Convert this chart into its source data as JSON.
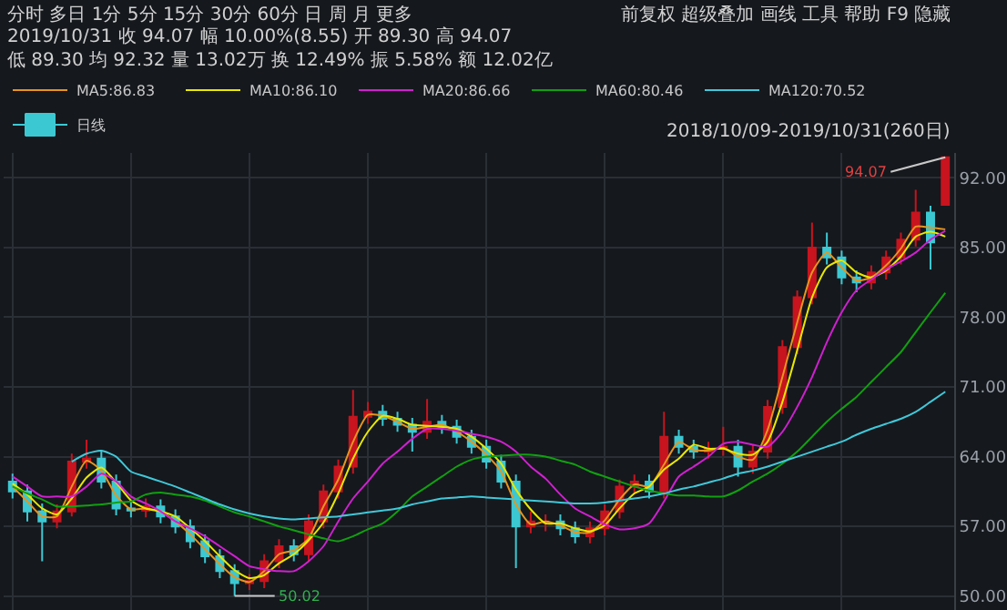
{
  "chart_data": {
    "type": "candlestick",
    "categories": [
      null,
      null,
      null,
      null,
      null,
      null,
      null,
      null,
      null,
      null,
      null,
      null,
      null,
      null,
      null,
      null,
      null,
      null,
      null,
      null,
      null,
      null,
      null,
      null,
      null,
      null,
      null,
      null,
      null,
      null,
      null,
      null,
      null,
      null,
      null,
      null,
      null,
      null,
      null,
      null,
      null,
      null,
      null,
      null,
      null,
      null,
      null,
      null,
      null,
      null,
      null,
      null,
      null,
      null,
      null,
      null,
      null,
      null,
      null,
      null,
      null,
      null,
      null,
      null
    ],
    "series": [
      {
        "name": "日线",
        "colors": [
          "#3cc8d2",
          "#3cc8d2",
          "#3cc8d2",
          "#c8141e",
          "#c8141e",
          "#c8141e",
          "#3cc8d2",
          "#3cc8d2",
          "#3cc8d2",
          "#c8141e",
          "#3cc8d2",
          "#3cc8d2",
          "#3cc8d2",
          "#3cc8d2",
          "#3cc8d2",
          "#3cc8d2",
          "#c8141e",
          "#c8141e",
          "#c8141e",
          "#3cc8d2",
          "#c8141e",
          "#c8141e",
          "#c8141e",
          "#c8141e",
          "#c8141e",
          "#3cc8d2",
          "#3cc8d2",
          "#3cc8d2",
          "#c8141e",
          "#3cc8d2",
          "#3cc8d2",
          "#3cc8d2",
          "#3cc8d2",
          "#3cc8d2",
          "#3cc8d2",
          "#c8141e",
          "#c8141e",
          "#3cc8d2",
          "#3cc8d2",
          "#c8141e",
          "#c8141e",
          "#c8141e",
          "#c8141e",
          "#3cc8d2",
          "#c8141e",
          "#3cc8d2",
          "#3cc8d2",
          "#c8141e",
          "#c8141e",
          "#3cc8d2",
          "#c8141e",
          "#c8141e",
          "#c8141e",
          "#c8141e",
          "#c8141e",
          "#3cc8d2",
          "#3cc8d2",
          "#3cc8d2",
          "#c8141e",
          "#c8141e",
          "#c8141e",
          "#c8141e",
          "#3cc8d2",
          "#c8141e"
        ],
        "ohlc": [
          [
            61.5,
            62.3,
            59.8,
            60.5
          ],
          [
            60.5,
            61.2,
            57.5,
            58.5
          ],
          [
            58.5,
            59.3,
            53.5,
            57.5
          ],
          [
            57.5,
            59.2,
            56.8,
            58.5
          ],
          [
            58.5,
            64.3,
            58.0,
            63.5
          ],
          [
            63.5,
            65.7,
            62.8,
            63.8
          ],
          [
            63.8,
            64.5,
            60.8,
            61.5
          ],
          [
            61.5,
            62.2,
            58.1,
            58.8
          ],
          [
            58.8,
            59.5,
            57.9,
            58.6
          ],
          [
            58.6,
            59.8,
            57.9,
            59.0
          ],
          [
            59.0,
            59.7,
            57.3,
            58.0
          ],
          [
            58.0,
            58.7,
            56.3,
            57.0
          ],
          [
            57.0,
            57.7,
            54.8,
            55.5
          ],
          [
            55.5,
            56.2,
            53.3,
            54.0
          ],
          [
            54.0,
            54.7,
            51.8,
            52.5
          ],
          [
            52.5,
            53.2,
            50.02,
            51.3
          ],
          [
            51.3,
            52.2,
            50.6,
            51.5
          ],
          [
            51.5,
            54.2,
            50.8,
            53.5
          ],
          [
            53.5,
            55.7,
            52.8,
            55.0
          ],
          [
            55.0,
            55.7,
            53.5,
            54.2
          ],
          [
            54.2,
            58.2,
            53.5,
            57.5
          ],
          [
            57.5,
            61.2,
            56.8,
            60.5
          ],
          [
            60.5,
            63.7,
            59.8,
            63.0
          ],
          [
            63.0,
            70.7,
            62.3,
            68.0
          ],
          [
            68.0,
            69.5,
            67.3,
            68.5
          ],
          [
            68.5,
            69.2,
            67.1,
            67.8
          ],
          [
            67.8,
            68.5,
            66.5,
            67.2
          ],
          [
            67.2,
            67.9,
            64.5,
            66.5
          ],
          [
            66.5,
            69.8,
            65.8,
            67.5
          ],
          [
            67.5,
            68.2,
            66.3,
            67.0
          ],
          [
            67.0,
            67.7,
            65.3,
            66.0
          ],
          [
            66.0,
            66.7,
            64.3,
            65.0
          ],
          [
            65.0,
            65.7,
            62.8,
            63.5
          ],
          [
            63.5,
            64.2,
            60.8,
            61.5
          ],
          [
            61.5,
            62.2,
            52.8,
            57.0
          ],
          [
            57.0,
            58.5,
            56.3,
            57.5
          ],
          [
            57.5,
            58.2,
            56.5,
            57.5
          ],
          [
            57.5,
            58.2,
            56.1,
            56.8
          ],
          [
            56.8,
            57.5,
            55.3,
            56.0
          ],
          [
            56.0,
            57.5,
            55.3,
            56.8
          ],
          [
            56.8,
            59.2,
            56.1,
            58.5
          ],
          [
            58.5,
            61.7,
            57.8,
            61.0
          ],
          [
            61.0,
            62.2,
            60.3,
            61.5
          ],
          [
            61.5,
            62.2,
            59.8,
            60.5
          ],
          [
            60.5,
            68.5,
            59.8,
            66.0
          ],
          [
            66.0,
            66.7,
            64.3,
            65.0
          ],
          [
            65.0,
            65.7,
            63.8,
            64.5
          ],
          [
            64.5,
            65.5,
            63.8,
            64.8
          ],
          [
            64.8,
            67.0,
            64.1,
            65.0
          ],
          [
            65.0,
            65.7,
            62.0,
            63.0
          ],
          [
            63.0,
            65.2,
            62.3,
            64.5
          ],
          [
            64.5,
            69.7,
            63.8,
            69.0
          ],
          [
            69.0,
            75.7,
            68.3,
            75.0
          ],
          [
            75.0,
            80.7,
            74.3,
            80.0
          ],
          [
            80.0,
            87.5,
            79.3,
            85.0
          ],
          [
            85.0,
            86.5,
            83.3,
            84.0
          ],
          [
            84.0,
            84.7,
            81.3,
            82.0
          ],
          [
            82.0,
            82.7,
            80.5,
            81.5
          ],
          [
            81.5,
            83.2,
            80.8,
            82.5
          ],
          [
            82.5,
            84.7,
            81.8,
            84.0
          ],
          [
            84.0,
            86.5,
            83.3,
            85.8
          ],
          [
            85.8,
            90.8,
            85.1,
            88.5
          ],
          [
            88.5,
            89.2,
            82.8,
            85.52
          ],
          [
            89.3,
            94.07,
            89.3,
            94.07
          ]
        ]
      },
      {
        "type": "line",
        "name": "MA5:86.83",
        "color": "#e6951f",
        "values": [
          61.0,
          59.5,
          58.0,
          58.0,
          61.0,
          63.6,
          62.6,
          60.1,
          58.7,
          58.8,
          58.5,
          57.5,
          56.2,
          54.7,
          53.2,
          51.9,
          51.4,
          52.5,
          54.2,
          54.6,
          55.8,
          59.0,
          61.7,
          65.5,
          68.2,
          68.1,
          67.5,
          66.8,
          67.0,
          67.2,
          66.5,
          65.5,
          64.2,
          62.5,
          59.2,
          57.2,
          57.5,
          57.1,
          56.4,
          56.4,
          57.6,
          59.7,
          61.2,
          61.0,
          63.2,
          65.5,
          64.7,
          64.6,
          64.9,
          64.0,
          63.7,
          66.7,
          72.0,
          77.5,
          82.5,
          84.5,
          83.0,
          81.7,
          82.0,
          83.2,
          84.9,
          87.1,
          87.0,
          86.83
        ]
      },
      {
        "type": "line",
        "name": "MA10:86.10",
        "color": "#e8e800",
        "values": [
          61.3,
          60.2,
          58.8,
          58.2,
          59.8,
          61.9,
          62.9,
          61.4,
          59.6,
          58.8,
          58.5,
          58.0,
          56.8,
          55.5,
          54.0,
          52.6,
          51.8,
          52.1,
          53.3,
          54.2,
          55.6,
          57.4,
          60.3,
          63.8,
          66.5,
          68.1,
          67.8,
          67.2,
          67.1,
          67.0,
          66.8,
          66.0,
          64.8,
          63.3,
          60.7,
          58.7,
          57.3,
          57.3,
          56.8,
          56.5,
          57.1,
          58.8,
          60.3,
          61.0,
          62.7,
          63.8,
          65.2,
          64.8,
          64.8,
          64.3,
          64.2,
          65.5,
          69.5,
          74.7,
          80.0,
          83.0,
          83.7,
          82.5,
          82.0,
          82.7,
          84.1,
          86.1,
          86.6,
          86.1
        ]
      },
      {
        "type": "line",
        "name": "MA20:86.66",
        "color": "#d020d0",
        "values": [
          62.0,
          61.0,
          60.0,
          60.0,
          60.0,
          61.0,
          62.3,
          61.5,
          60.0,
          59.3,
          58.5,
          57.5,
          56.8,
          56.0,
          55.0,
          54.0,
          53.0,
          52.7,
          52.5,
          52.5,
          53.5,
          55.0,
          57.5,
          59.8,
          61.5,
          63.3,
          64.5,
          65.8,
          66.8,
          66.8,
          66.6,
          66.3,
          66.0,
          65.5,
          64.5,
          63.0,
          61.8,
          60.2,
          58.8,
          58.0,
          57.2,
          56.7,
          56.8,
          57.3,
          59.5,
          62.0,
          63.0,
          64.0,
          65.3,
          65.5,
          65.2,
          65.0,
          66.5,
          69.0,
          72.0,
          75.5,
          78.5,
          80.7,
          81.8,
          82.8,
          83.6,
          84.5,
          85.8,
          86.66
        ]
      },
      {
        "type": "line",
        "name": "MA60:80.46",
        "color": "#10a010",
        "values": [
          61.0,
          60.3,
          59.7,
          59.0,
          59.0,
          59.1,
          59.2,
          59.4,
          59.5,
          60.2,
          60.4,
          60.2,
          60.0,
          59.6,
          59.0,
          58.4,
          58.0,
          57.5,
          57.0,
          56.6,
          56.2,
          55.8,
          55.5,
          56.0,
          56.7,
          57.3,
          58.5,
          60.0,
          61.0,
          62.0,
          63.0,
          63.7,
          64.0,
          64.1,
          64.2,
          64.2,
          64.0,
          63.6,
          63.2,
          62.5,
          62.0,
          61.5,
          61.0,
          60.6,
          60.3,
          60.1,
          60.1,
          60.0,
          60.0,
          60.6,
          61.5,
          62.3,
          63.3,
          64.5,
          66.0,
          67.5,
          68.8,
          70.0,
          71.5,
          73.0,
          74.5,
          76.5,
          78.5,
          80.46
        ]
      },
      {
        "type": "line",
        "name": "MA120:70.52",
        "color": "#40c8d8",
        "values": [
          null,
          null,
          null,
          null,
          63.5,
          64.3,
          64.6,
          64.0,
          62.5,
          62.0,
          61.5,
          61.0,
          60.4,
          59.8,
          59.2,
          58.7,
          58.3,
          58.0,
          57.8,
          57.7,
          57.8,
          57.9,
          58.0,
          58.2,
          58.4,
          58.6,
          58.8,
          59.2,
          59.5,
          59.8,
          59.9,
          60.0,
          59.9,
          59.8,
          59.7,
          59.6,
          59.5,
          59.4,
          59.3,
          59.3,
          59.4,
          59.6,
          59.8,
          60.0,
          60.3,
          60.7,
          61.0,
          61.4,
          61.8,
          62.3,
          62.6,
          63.0,
          63.5,
          64.0,
          64.5,
          65.0,
          65.5,
          66.2,
          66.8,
          67.3,
          67.8,
          68.5,
          69.5,
          70.52
        ]
      }
    ],
    "ylim": [
      48.6,
      94.5
    ],
    "yticks": [
      {
        "value": 50,
        "label": "50.00"
      },
      {
        "value": 57,
        "label": "57.00"
      },
      {
        "value": 64,
        "label": "64.00"
      },
      {
        "value": 71,
        "label": "71.00"
      },
      {
        "value": 78,
        "label": "78.00"
      },
      {
        "value": 85,
        "label": "85.00"
      },
      {
        "value": 92,
        "label": "92.00"
      }
    ],
    "grid": true,
    "legend": "top left",
    "tick_labels": "y",
    "annotations": [
      "分时 多日 1分 5分 15分 30分 60分 日 周 月 更多",
      "前复权 超级叠加 画线 工具 帮助 F9 隐藏",
      "2019/10/31 收 94.07 幅 10.00%(8.55) 开 89.30 高 94.07 低 89.30 均 92.32 量 13.02万 换 12.49% 振 5.58% 额 12.02亿",
      "2018/10/09-2019/10/31(260日)",
      "94.07",
      "50.02"
    ]
  }
}
